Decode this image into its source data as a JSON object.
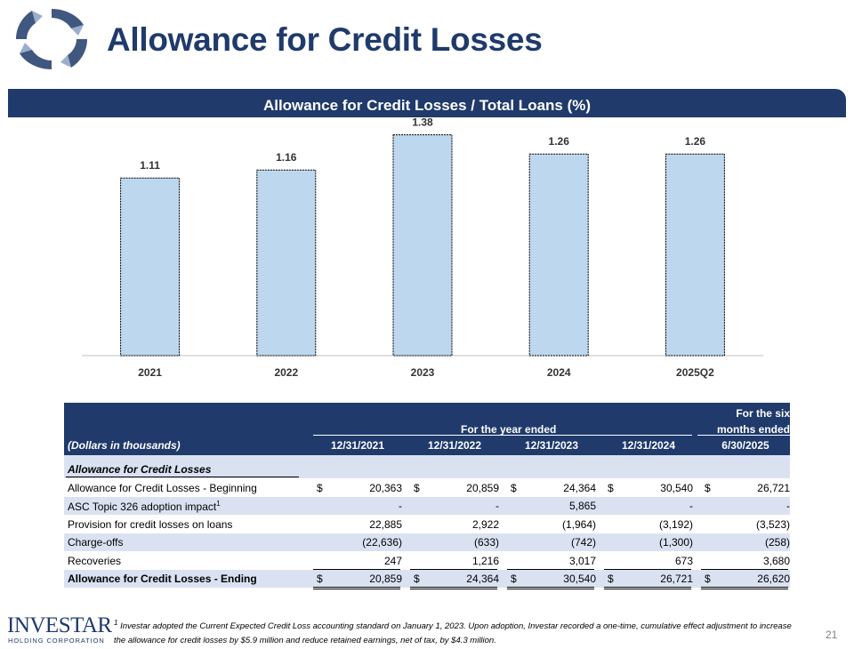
{
  "page_title": "Allowance for Credit Losses",
  "banner_title": "Allowance for Credit Losses / Total Loans (%)",
  "chart_data": {
    "type": "bar",
    "title": "Allowance for Credit Losses / Total Loans (%)",
    "categories": [
      "2021",
      "2022",
      "2023",
      "2024",
      "2025Q2"
    ],
    "values": [
      1.11,
      1.16,
      1.38,
      1.26,
      1.26
    ],
    "value_labels": [
      "1.11",
      "1.16",
      "1.38",
      "1.26",
      "1.26"
    ],
    "ylim": [
      0,
      1.5
    ],
    "grid": false,
    "bar_color": "#bdd7ee"
  },
  "table": {
    "group_header_year": "For the year ended",
    "group_header_six_line1": "For the six",
    "group_header_six_line2": "months ended",
    "units_label": "(Dollars in thousands)",
    "columns": [
      "12/31/2021",
      "12/31/2022",
      "12/31/2023",
      "12/31/2024",
      "6/30/2025"
    ],
    "section_label": "Allowance for Credit Losses",
    "rows": [
      {
        "label": "Allowance for Credit Losses - Beginning",
        "sup": "",
        "dollar": true,
        "values": [
          "20,363",
          "20,859",
          "24,364",
          "30,540",
          "26,721"
        ]
      },
      {
        "label": "ASC Topic 326 adoption impact",
        "sup": "1",
        "dollar": false,
        "values": [
          "-",
          "-",
          "5,865",
          "-",
          "-"
        ]
      },
      {
        "label": "Provision for credit losses on loans",
        "sup": "",
        "dollar": false,
        "values": [
          "22,885",
          "2,922",
          "(1,964)",
          "(3,192)",
          "(3,523)"
        ]
      },
      {
        "label": "Charge-offs",
        "sup": "",
        "dollar": false,
        "values": [
          "(22,636)",
          "(633)",
          "(742)",
          "(1,300)",
          "(258)"
        ]
      },
      {
        "label": "Recoveries",
        "sup": "",
        "dollar": false,
        "values": [
          "247",
          "1,216",
          "3,017",
          "673",
          "3,680"
        ]
      },
      {
        "label": "Allowance for Credit Losses - Ending",
        "sup": "",
        "dollar": true,
        "values": [
          "20,859",
          "24,364",
          "30,540",
          "26,721",
          "26,620"
        ]
      }
    ],
    "currency_symbol": "$"
  },
  "footer": {
    "company_name": "INVESTAR",
    "company_sub": "HOLDING CORPORATION",
    "footnote_marker": "1",
    "footnote": "Investar adopted the Current Expected Credit Loss accounting standard on January 1, 2023. Upon adoption, Investar recorded a one-time, cumulative effect adjustment to increase the allowance for credit losses by $5.9 million and reduce retained earnings, net of tax, by $4.3 million.",
    "page_number": "21"
  },
  "colors": {
    "navy": "#1f3a6b",
    "band": "#dae2f2",
    "bar": "#bdd7ee"
  }
}
